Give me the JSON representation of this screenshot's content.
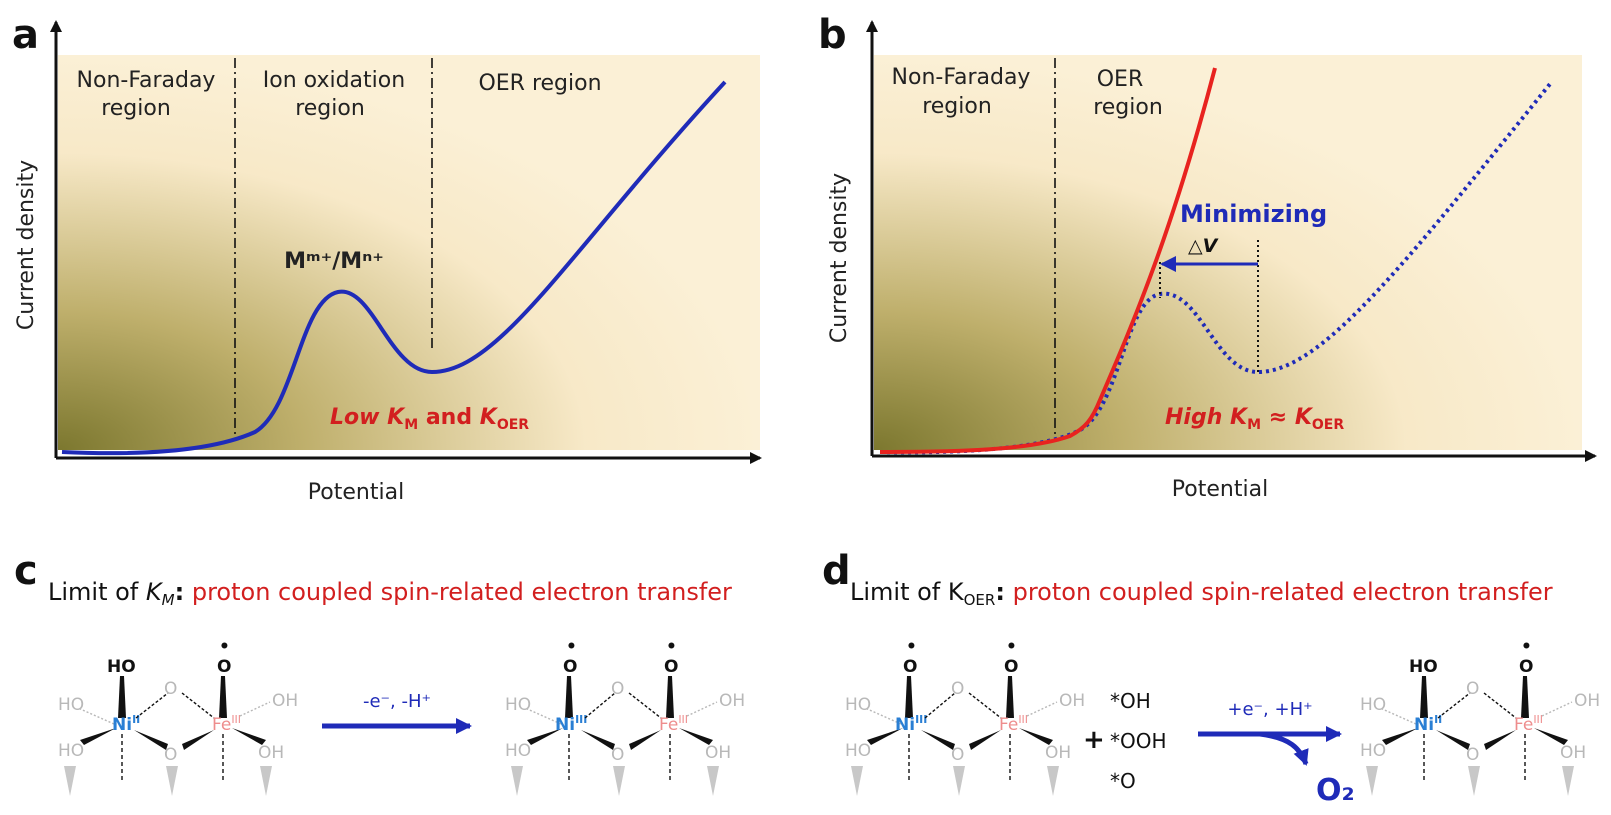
{
  "panels": {
    "a": {
      "letter": "a",
      "regions": [
        {
          "line1": "Non-Faraday",
          "line2": "region"
        },
        {
          "line1": "Ion oxidation",
          "line2": "region"
        },
        {
          "line1": "OER region",
          "line2": ""
        }
      ],
      "ylabel": "Current density",
      "xlabel": "Potential",
      "peak_label": "Mᵐ⁺/Mⁿ⁺",
      "annotation": {
        "low": "Low",
        "km": "K",
        "km_sub": "M",
        "and": "and",
        "koer": "K",
        "koer_sub": "OER"
      }
    },
    "b": {
      "letter": "b",
      "regions": [
        {
          "line1": "Non-Faraday",
          "line2": "region"
        },
        {
          "line1": "OER",
          "line2": "region"
        }
      ],
      "ylabel": "Current density",
      "xlabel": "Potential",
      "minimizing": "Minimizing",
      "delta_v": "△V",
      "annotation": {
        "high": "High",
        "km": "K",
        "km_sub": "M",
        "approx": "≈",
        "koer": "K",
        "koer_sub": "OER"
      }
    },
    "c": {
      "letter": "c",
      "title_prefix": "Limit of ",
      "title_k": "K",
      "title_sub": "M",
      "title_colon": ":",
      "title_red": "proton coupled spin-related electron transfer",
      "arrow_label": "-e⁻, -H⁺"
    },
    "d": {
      "letter": "d",
      "title_prefix": "Limit of K",
      "title_sub": "OER",
      "title_colon": ":",
      "title_red": "proton coupled spin-related electron transfer",
      "arrow_label": "+e⁻, +H⁺",
      "plus": "+",
      "species": [
        "*OH",
        "*OOH",
        "*O"
      ],
      "product": "O₂"
    }
  },
  "molecule": {
    "ho": "HO",
    "oh": "OH",
    "o": "O",
    "ni": "Ni",
    "fe": "Fe",
    "ox_ii": "II",
    "ox_iii": "III",
    "radical": "•"
  },
  "colors": {
    "bg_light": "#fbf0d6",
    "bg_dark": "#6e6a1c",
    "curve_blue": "#1f2bb8",
    "curve_red": "#e8231f",
    "text_red": "#d21f1f",
    "ni_blue": "#2a7fd4",
    "fe_pink": "#ee8d8d",
    "gray": "#b8b8b8"
  }
}
